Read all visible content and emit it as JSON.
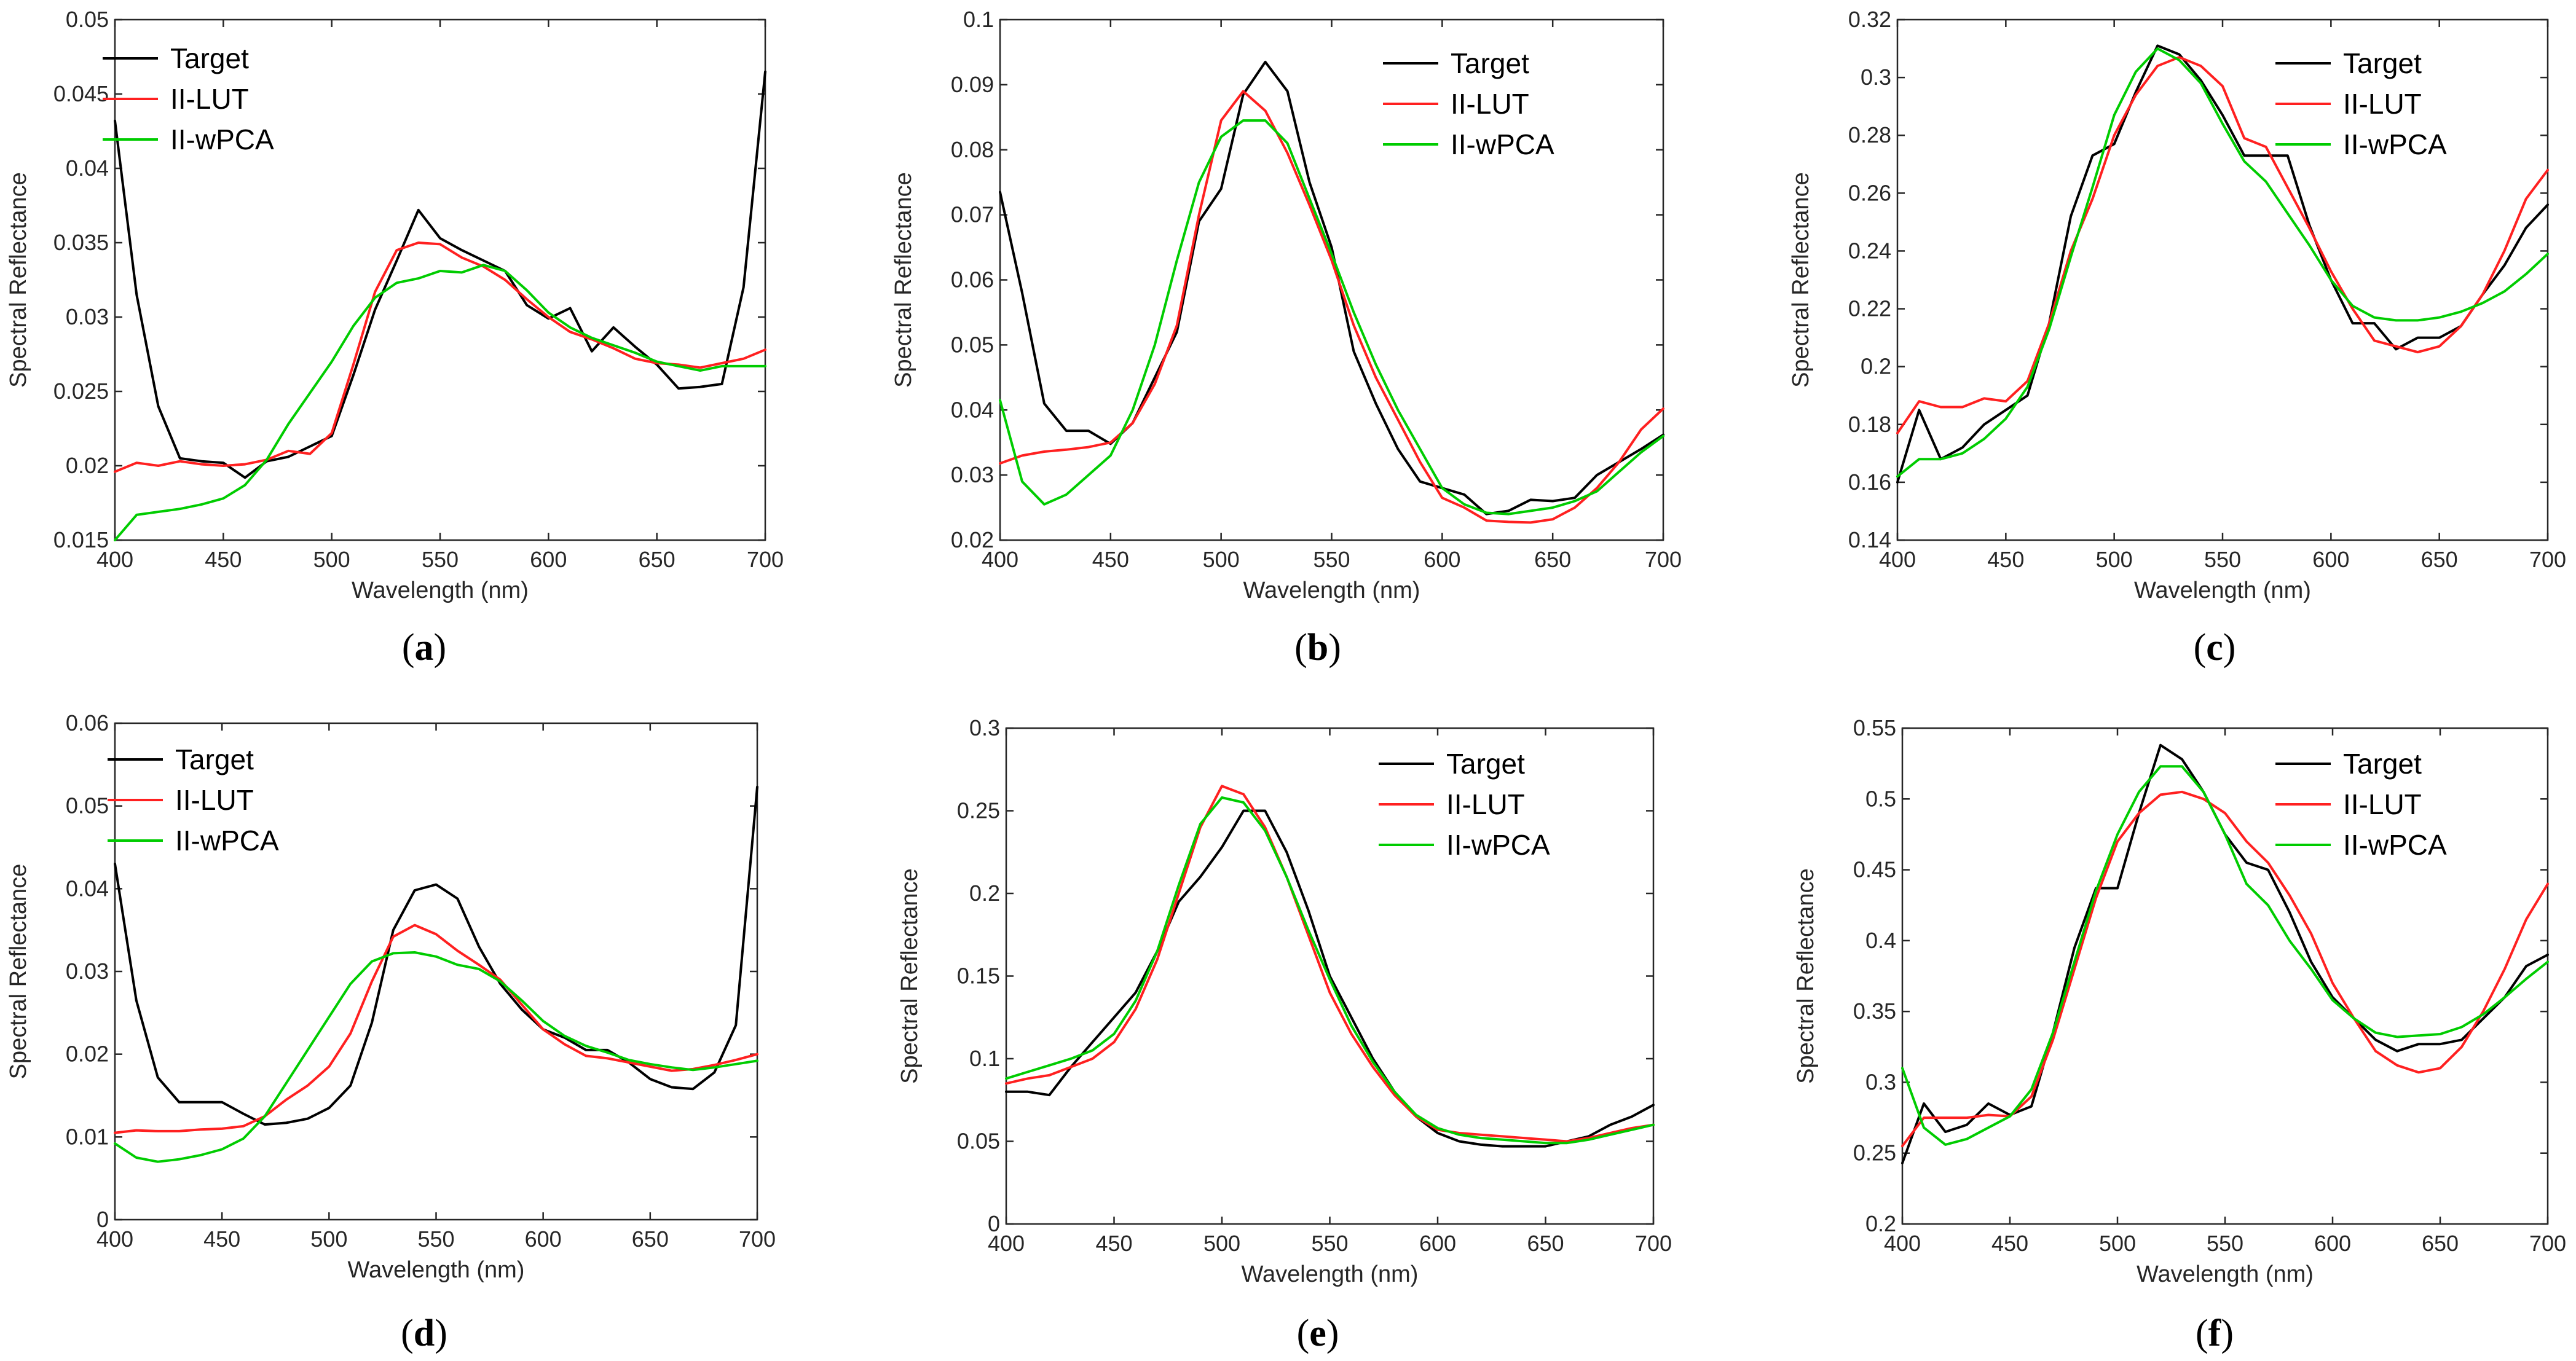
{
  "colors": {
    "Target": "#000000",
    "II-LUT": "#ff2020",
    "II-wPCA": "#00cc00"
  },
  "chart_data": [
    {
      "type": "line",
      "panel_label": "a",
      "xlabel": "Wavelength (nm)",
      "ylabel": "Spectral Reflectance",
      "xlim": [
        400,
        700
      ],
      "ylim": [
        0.015,
        0.05
      ],
      "xticks": [
        400,
        450,
        500,
        550,
        600,
        650,
        700
      ],
      "xtick_labels": [
        "400",
        "450",
        "500",
        "550",
        "600",
        "650",
        "700"
      ],
      "yticks": [
        0.015,
        0.02,
        0.025,
        0.03,
        0.035,
        0.04,
        0.045,
        0.05
      ],
      "ytick_labels": [
        "0.015",
        "0.02",
        "0.025",
        "0.03",
        "0.035",
        "0.04",
        "0.045",
        "0.05"
      ],
      "legend_position": "top-left",
      "x": [
        400,
        410,
        420,
        430,
        440,
        450,
        460,
        470,
        480,
        490,
        500,
        510,
        520,
        530,
        540,
        550,
        560,
        570,
        580,
        590,
        600,
        610,
        620,
        630,
        640,
        650,
        660,
        670,
        680,
        690,
        700
      ],
      "series": [
        {
          "name": "Target",
          "values": [
            0.0432,
            0.0315,
            0.024,
            0.0205,
            0.0203,
            0.0202,
            0.0192,
            0.0203,
            0.0206,
            0.0213,
            0.022,
            0.0261,
            0.0305,
            0.0338,
            0.0372,
            0.0353,
            0.0345,
            0.0338,
            0.0331,
            0.0308,
            0.0299,
            0.0306,
            0.0277,
            0.0293,
            0.028,
            0.0268,
            0.0252,
            0.0253,
            0.0255,
            0.032,
            0.0465
          ]
        },
        {
          "name": "II-LUT",
          "values": [
            0.0196,
            0.0202,
            0.02,
            0.0203,
            0.0201,
            0.02,
            0.0201,
            0.0204,
            0.021,
            0.0208,
            0.0222,
            0.0268,
            0.0317,
            0.0345,
            0.035,
            0.0349,
            0.034,
            0.0334,
            0.0325,
            0.0312,
            0.03,
            0.029,
            0.0285,
            0.0279,
            0.0272,
            0.0269,
            0.0268,
            0.0266,
            0.0269,
            0.0272,
            0.0278
          ]
        },
        {
          "name": "II-wPCA",
          "values": [
            0.015,
            0.0167,
            0.0169,
            0.0171,
            0.0174,
            0.0178,
            0.0187,
            0.0204,
            0.0228,
            0.0249,
            0.027,
            0.0294,
            0.0313,
            0.0323,
            0.0326,
            0.0331,
            0.033,
            0.0335,
            0.0331,
            0.0318,
            0.0303,
            0.0293,
            0.0286,
            0.0281,
            0.0276,
            0.027,
            0.0267,
            0.0264,
            0.0267,
            0.0267,
            0.0267
          ]
        }
      ]
    },
    {
      "type": "line",
      "panel_label": "b",
      "xlabel": "Wavelength (nm)",
      "ylabel": "Spectral Reflectance",
      "xlim": [
        400,
        700
      ],
      "ylim": [
        0.02,
        0.1
      ],
      "xticks": [
        400,
        450,
        500,
        550,
        600,
        650,
        700
      ],
      "xtick_labels": [
        "400",
        "450",
        "500",
        "550",
        "600",
        "650",
        "700"
      ],
      "yticks": [
        0.02,
        0.03,
        0.04,
        0.05,
        0.06,
        0.07,
        0.08,
        0.09,
        0.1
      ],
      "ytick_labels": [
        "0.02",
        "0.03",
        "0.04",
        "0.05",
        "0.06",
        "0.07",
        "0.08",
        "0.09",
        "0.1"
      ],
      "legend_position": "top-right",
      "x": [
        400,
        410,
        420,
        430,
        440,
        450,
        460,
        470,
        480,
        490,
        500,
        510,
        520,
        530,
        540,
        550,
        560,
        570,
        580,
        590,
        600,
        610,
        620,
        630,
        640,
        650,
        660,
        670,
        680,
        690,
        700
      ],
      "series": [
        {
          "name": "Target",
          "values": [
            0.0735,
            0.058,
            0.041,
            0.0368,
            0.0368,
            0.0348,
            0.038,
            0.045,
            0.052,
            0.069,
            0.074,
            0.0885,
            0.0935,
            0.089,
            0.075,
            0.065,
            0.049,
            0.041,
            0.034,
            0.029,
            0.028,
            0.027,
            0.024,
            0.0245,
            0.0262,
            0.026,
            0.0265,
            0.03,
            0.032,
            0.034,
            0.0362
          ]
        },
        {
          "name": "II-LUT",
          "values": [
            0.0318,
            0.033,
            0.0336,
            0.0339,
            0.0343,
            0.035,
            0.038,
            0.044,
            0.053,
            0.07,
            0.0845,
            0.089,
            0.086,
            0.0795,
            0.0715,
            0.063,
            0.053,
            0.045,
            0.0385,
            0.032,
            0.0265,
            0.025,
            0.023,
            0.0228,
            0.0227,
            0.0232,
            0.025,
            0.028,
            0.032,
            0.037,
            0.0402
          ]
        },
        {
          "name": "II-wPCA",
          "values": [
            0.0415,
            0.029,
            0.0255,
            0.027,
            0.03,
            0.033,
            0.04,
            0.05,
            0.063,
            0.075,
            0.082,
            0.0845,
            0.0845,
            0.081,
            0.0725,
            0.064,
            0.055,
            0.047,
            0.04,
            0.034,
            0.028,
            0.0255,
            0.0242,
            0.024,
            0.0245,
            0.025,
            0.026,
            0.0275,
            0.0305,
            0.0335,
            0.036
          ]
        }
      ]
    },
    {
      "type": "line",
      "panel_label": "c",
      "xlabel": "Wavelength (nm)",
      "ylabel": "Spectral Reflectance",
      "xlim": [
        400,
        700
      ],
      "ylim": [
        0.14,
        0.32
      ],
      "xticks": [
        400,
        450,
        500,
        550,
        600,
        650,
        700
      ],
      "xtick_labels": [
        "400",
        "450",
        "500",
        "550",
        "600",
        "650",
        "700"
      ],
      "yticks": [
        0.14,
        0.16,
        0.18,
        0.2,
        0.22,
        0.24,
        0.26,
        0.28,
        0.3,
        0.32
      ],
      "ytick_labels": [
        "0.14",
        "0.16",
        "0.18",
        "0.2",
        "0.22",
        "0.24",
        "0.26",
        "0.28",
        "0.3",
        "0.32"
      ],
      "legend_position": "top-right",
      "x": [
        400,
        410,
        420,
        430,
        440,
        450,
        460,
        470,
        480,
        490,
        500,
        510,
        520,
        530,
        540,
        550,
        560,
        570,
        580,
        590,
        600,
        610,
        620,
        630,
        640,
        650,
        660,
        670,
        680,
        690,
        700
      ],
      "series": [
        {
          "name": "Target",
          "values": [
            0.16,
            0.185,
            0.168,
            0.172,
            0.18,
            0.185,
            0.19,
            0.215,
            0.252,
            0.273,
            0.277,
            0.295,
            0.311,
            0.308,
            0.299,
            0.287,
            0.273,
            0.273,
            0.273,
            0.249,
            0.23,
            0.215,
            0.215,
            0.206,
            0.21,
            0.21,
            0.214,
            0.225,
            0.235,
            0.248,
            0.256
          ]
        },
        {
          "name": "II-LUT",
          "values": [
            0.177,
            0.188,
            0.186,
            0.186,
            0.189,
            0.188,
            0.195,
            0.215,
            0.24,
            0.258,
            0.28,
            0.294,
            0.304,
            0.307,
            0.304,
            0.297,
            0.279,
            0.276,
            0.262,
            0.248,
            0.233,
            0.22,
            0.209,
            0.207,
            0.205,
            0.207,
            0.214,
            0.225,
            0.24,
            0.258,
            0.268
          ]
        },
        {
          "name": "II-wPCA",
          "values": [
            0.162,
            0.168,
            0.168,
            0.17,
            0.175,
            0.182,
            0.193,
            0.213,
            0.238,
            0.262,
            0.287,
            0.302,
            0.31,
            0.306,
            0.298,
            0.284,
            0.271,
            0.264,
            0.253,
            0.242,
            0.23,
            0.221,
            0.217,
            0.216,
            0.216,
            0.217,
            0.219,
            0.222,
            0.226,
            0.232,
            0.239
          ]
        }
      ]
    },
    {
      "type": "line",
      "panel_label": "d",
      "xlabel": "Wavelength (nm)",
      "ylabel": "Spectral Reflectance",
      "xlim": [
        400,
        700
      ],
      "ylim": [
        0,
        0.06
      ],
      "xticks": [
        400,
        450,
        500,
        550,
        600,
        650,
        700
      ],
      "xtick_labels": [
        "400",
        "450",
        "500",
        "550",
        "600",
        "650",
        "700"
      ],
      "yticks": [
        0,
        0.01,
        0.02,
        0.03,
        0.04,
        0.05,
        0.06
      ],
      "ytick_labels": [
        "0",
        "0.01",
        "0.02",
        "0.03",
        "0.04",
        "0.05",
        "0.06"
      ],
      "legend_position": "top-left",
      "x": [
        400,
        410,
        420,
        430,
        440,
        450,
        460,
        470,
        480,
        490,
        500,
        510,
        520,
        530,
        540,
        550,
        560,
        570,
        580,
        590,
        600,
        610,
        620,
        630,
        640,
        650,
        660,
        670,
        680,
        690,
        700
      ],
      "series": [
        {
          "name": "Target",
          "values": [
            0.043,
            0.0265,
            0.0172,
            0.0142,
            0.0142,
            0.0142,
            0.0128,
            0.0115,
            0.0117,
            0.0122,
            0.0135,
            0.0162,
            0.0238,
            0.035,
            0.0398,
            0.0405,
            0.0388,
            0.033,
            0.0285,
            0.0254,
            0.023,
            0.022,
            0.0205,
            0.0205,
            0.019,
            0.017,
            0.016,
            0.0158,
            0.0178,
            0.0235,
            0.0523
          ]
        },
        {
          "name": "II-LUT",
          "values": [
            0.0105,
            0.0108,
            0.0107,
            0.0107,
            0.0109,
            0.011,
            0.0113,
            0.0125,
            0.0145,
            0.0162,
            0.0185,
            0.0225,
            0.0288,
            0.0342,
            0.0356,
            0.0345,
            0.0325,
            0.0308,
            0.029,
            0.026,
            0.023,
            0.0212,
            0.0198,
            0.0195,
            0.019,
            0.0185,
            0.018,
            0.0182,
            0.0187,
            0.0193,
            0.02
          ]
        },
        {
          "name": "II-wPCA",
          "values": [
            0.0092,
            0.0075,
            0.007,
            0.0073,
            0.0078,
            0.0085,
            0.0098,
            0.0125,
            0.0165,
            0.0205,
            0.0245,
            0.0285,
            0.0312,
            0.0322,
            0.0323,
            0.0318,
            0.0308,
            0.0303,
            0.0288,
            0.0265,
            0.024,
            0.0222,
            0.021,
            0.0202,
            0.0193,
            0.0188,
            0.0184,
            0.0181,
            0.0184,
            0.0188,
            0.0192
          ]
        }
      ]
    },
    {
      "type": "line",
      "panel_label": "e",
      "xlabel": "Wavelength (nm)",
      "ylabel": "Spectral Reflectance",
      "xlim": [
        400,
        700
      ],
      "ylim": [
        0,
        0.3
      ],
      "xticks": [
        400,
        450,
        500,
        550,
        600,
        650,
        700
      ],
      "xtick_labels": [
        "400",
        "450",
        "500",
        "550",
        "600",
        "650",
        "700"
      ],
      "yticks": [
        0,
        0.05,
        0.1,
        0.15,
        0.2,
        0.25,
        0.3
      ],
      "ytick_labels": [
        "0",
        "0.05",
        "0.1",
        "0.15",
        "0.2",
        "0.25",
        "0.3"
      ],
      "legend_position": "top-right",
      "x": [
        400,
        410,
        420,
        430,
        440,
        450,
        460,
        470,
        480,
        490,
        500,
        510,
        520,
        530,
        540,
        550,
        560,
        570,
        580,
        590,
        600,
        610,
        620,
        630,
        640,
        650,
        660,
        670,
        680,
        690,
        700
      ],
      "series": [
        {
          "name": "Target",
          "values": [
            0.08,
            0.08,
            0.078,
            0.095,
            0.11,
            0.125,
            0.14,
            0.165,
            0.195,
            0.21,
            0.228,
            0.25,
            0.25,
            0.225,
            0.19,
            0.15,
            0.125,
            0.1,
            0.08,
            0.065,
            0.055,
            0.05,
            0.048,
            0.047,
            0.047,
            0.047,
            0.05,
            0.053,
            0.06,
            0.065,
            0.072
          ]
        },
        {
          "name": "II-LUT",
          "values": [
            0.085,
            0.088,
            0.09,
            0.095,
            0.1,
            0.11,
            0.13,
            0.16,
            0.2,
            0.24,
            0.265,
            0.26,
            0.24,
            0.21,
            0.175,
            0.14,
            0.115,
            0.095,
            0.078,
            0.065,
            0.057,
            0.055,
            0.054,
            0.053,
            0.052,
            0.051,
            0.05,
            0.052,
            0.055,
            0.058,
            0.06
          ]
        },
        {
          "name": "II-wPCA",
          "values": [
            0.088,
            0.092,
            0.096,
            0.1,
            0.105,
            0.115,
            0.135,
            0.165,
            0.205,
            0.242,
            0.258,
            0.255,
            0.238,
            0.21,
            0.178,
            0.148,
            0.12,
            0.098,
            0.08,
            0.066,
            0.058,
            0.054,
            0.052,
            0.051,
            0.05,
            0.049,
            0.049,
            0.051,
            0.054,
            0.057,
            0.06
          ]
        }
      ]
    },
    {
      "type": "line",
      "panel_label": "f",
      "xlabel": "Wavelength (nm)",
      "ylabel": "Spectral Reflectance",
      "xlim": [
        400,
        700
      ],
      "ylim": [
        0.2,
        0.55
      ],
      "xticks": [
        400,
        450,
        500,
        550,
        600,
        650,
        700
      ],
      "xtick_labels": [
        "400",
        "450",
        "500",
        "550",
        "600",
        "650",
        "700"
      ],
      "yticks": [
        0.2,
        0.25,
        0.3,
        0.35,
        0.4,
        0.45,
        0.5,
        0.55
      ],
      "ytick_labels": [
        "0.2",
        "0.25",
        "0.3",
        "0.35",
        "0.4",
        "0.45",
        "0.5",
        "0.55"
      ],
      "legend_position": "top-right",
      "x": [
        400,
        410,
        420,
        430,
        440,
        450,
        460,
        470,
        480,
        490,
        500,
        510,
        520,
        530,
        540,
        550,
        560,
        570,
        580,
        590,
        600,
        610,
        620,
        630,
        640,
        650,
        660,
        670,
        680,
        690,
        700
      ],
      "series": [
        {
          "name": "Target",
          "values": [
            0.243,
            0.285,
            0.265,
            0.27,
            0.285,
            0.277,
            0.283,
            0.335,
            0.395,
            0.437,
            0.437,
            0.49,
            0.538,
            0.528,
            0.505,
            0.475,
            0.455,
            0.45,
            0.42,
            0.385,
            0.36,
            0.345,
            0.33,
            0.322,
            0.327,
            0.327,
            0.33,
            0.345,
            0.36,
            0.382,
            0.39
          ]
        },
        {
          "name": "II-LUT",
          "values": [
            0.255,
            0.275,
            0.275,
            0.275,
            0.277,
            0.276,
            0.29,
            0.33,
            0.38,
            0.43,
            0.47,
            0.49,
            0.503,
            0.505,
            0.5,
            0.49,
            0.47,
            0.455,
            0.432,
            0.405,
            0.37,
            0.345,
            0.322,
            0.312,
            0.307,
            0.31,
            0.325,
            0.35,
            0.38,
            0.415,
            0.44
          ]
        },
        {
          "name": "II-wPCA",
          "values": [
            0.31,
            0.268,
            0.256,
            0.26,
            0.268,
            0.276,
            0.295,
            0.335,
            0.385,
            0.435,
            0.475,
            0.505,
            0.523,
            0.523,
            0.505,
            0.475,
            0.44,
            0.425,
            0.4,
            0.38,
            0.358,
            0.345,
            0.335,
            0.332,
            0.333,
            0.334,
            0.339,
            0.348,
            0.36,
            0.373,
            0.385
          ]
        }
      ]
    }
  ]
}
